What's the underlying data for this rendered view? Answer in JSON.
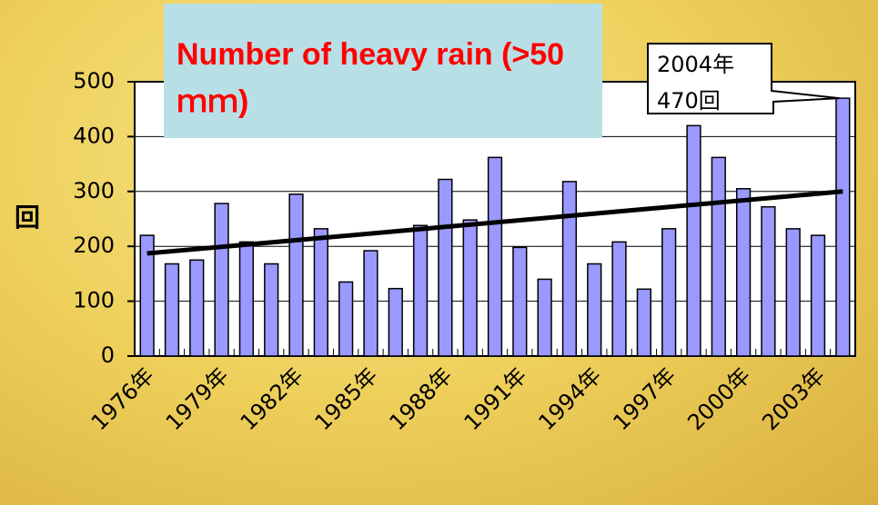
{
  "chart_data": {
    "type": "bar",
    "title": "Number of heavy rain (>50ｍｍ)",
    "y_label": "回",
    "categories": [
      "1976年",
      null,
      null,
      "1979年",
      null,
      null,
      "1982年",
      null,
      null,
      "1985年",
      null,
      null,
      "1988年",
      null,
      null,
      "1991年",
      null,
      null,
      "1994年",
      null,
      null,
      "1997年",
      null,
      null,
      "2000年",
      null,
      null,
      "2003年",
      null
    ],
    "values": [
      220,
      168,
      175,
      278,
      208,
      168,
      295,
      232,
      135,
      192,
      123,
      238,
      322,
      248,
      362,
      198,
      140,
      318,
      168,
      208,
      122,
      232,
      420,
      362,
      305,
      272,
      232,
      220,
      470
    ],
    "color": "#9999ff",
    "trend_line": {
      "values": [
        187,
        300
      ],
      "color": "#000000"
    },
    "annotation": [
      "2004年",
      "470回"
    ],
    "ylim": [
      0,
      500
    ],
    "yticks": [
      0,
      100,
      200,
      300,
      400,
      500
    ],
    "grid": true
  }
}
